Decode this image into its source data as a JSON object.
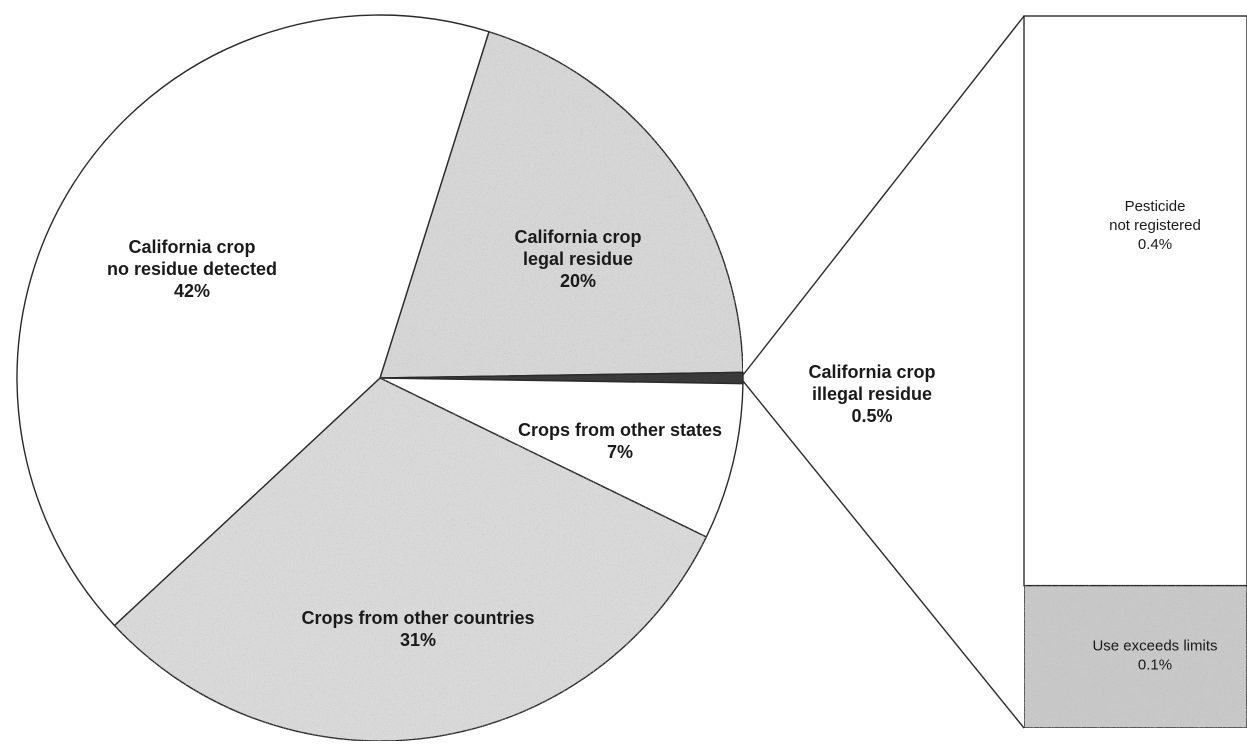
{
  "chart_data": [
    {
      "type": "pie",
      "title": "",
      "slices": [
        {
          "label_lines": [
            "California crop",
            "legal residue",
            "20%"
          ],
          "value": 20,
          "color": "#d6d6d6"
        },
        {
          "label_lines": [
            "California crop",
            "illegal residue",
            "0.5%"
          ],
          "value": 0.5,
          "color": "#3a3a3a"
        },
        {
          "label_lines": [
            "Crops from other states",
            "7%"
          ],
          "value": 7,
          "color": "#ffffff"
        },
        {
          "label_lines": [
            "Crops from other countries",
            "31%"
          ],
          "value": 31,
          "color": "#d9d9d9"
        },
        {
          "label_lines": [
            "California crop",
            "no residue detected",
            "42%"
          ],
          "value": 42,
          "color": "#ffffff"
        }
      ]
    },
    {
      "type": "bar",
      "stacked": true,
      "title": "",
      "segments": [
        {
          "label_lines": [
            "Pesticide",
            "not registered",
            "0.4%"
          ],
          "value": 0.4,
          "color": "#ffffff"
        },
        {
          "label_lines": [
            "Use exceeds limits",
            "0.1%"
          ],
          "value": 0.1,
          "color": "#c8c8c8"
        }
      ]
    }
  ]
}
